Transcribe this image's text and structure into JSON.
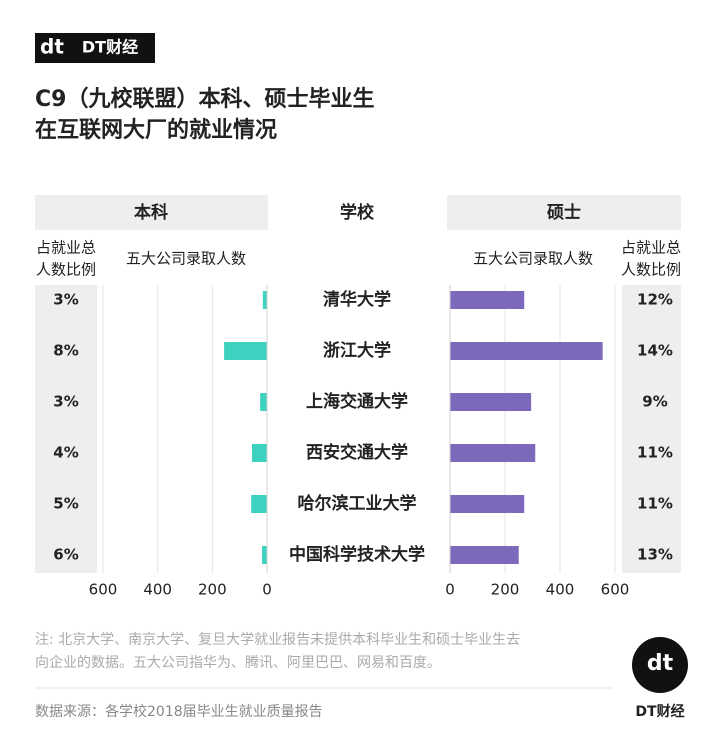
{
  "brand": "DT财经",
  "logo_mark": "dt",
  "chart_data": {
    "type": "butterfly",
    "title": [
      "C9（九校联盟）本科、硕士毕业生",
      "在互联网大厂的就业情况"
    ],
    "category_label": "学校",
    "categories": [
      "清华大学",
      "浙江大学",
      "上海交通大学",
      "西安交通大学",
      "哈尔滨工业大学",
      "中国科学技术大学"
    ],
    "series": [
      {
        "name": "本科",
        "side": "left",
        "color": "#3dd1c0",
        "bar_label": "五大公司录取人数",
        "share_label": [
          "占就业总",
          "人数比例"
        ],
        "values": [
          15,
          157,
          25,
          55,
          58,
          18
        ],
        "share_values": [
          3,
          8,
          3,
          4,
          5,
          6
        ],
        "share_labels": [
          "3%",
          "8%",
          "3%",
          "4%",
          "5%",
          "6%"
        ],
        "xlim": [
          0,
          600
        ],
        "xticks": [
          600,
          400,
          200,
          0
        ]
      },
      {
        "name": "硕士",
        "side": "right",
        "color": "#7c69bb",
        "bar_label": "五大公司录取人数",
        "share_label": [
          "占就业总",
          "人数比例"
        ],
        "values": [
          270,
          555,
          295,
          310,
          270,
          250
        ],
        "share_values": [
          12,
          14,
          9,
          11,
          11,
          13
        ],
        "share_labels": [
          "12%",
          "14%",
          "9%",
          "11%",
          "11%",
          "13%"
        ],
        "xlim": [
          0,
          600
        ],
        "xticks": [
          0,
          200,
          400,
          600
        ]
      }
    ],
    "grid": true,
    "notes": [
      "注: 北京大学、南京大学、复旦大学就业报告未提供本科毕业生和硕士毕业生去",
      "向企业的数据。五大公司指华为、腾讯、阿里巴巴、网易和百度。"
    ],
    "source": "数据来源：各学校2018届毕业生就业质量报告"
  }
}
